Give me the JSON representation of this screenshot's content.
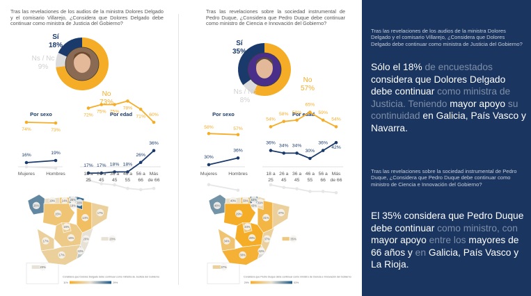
{
  "colors": {
    "si": "#1a3a6b",
    "no": "#f5ad27",
    "nsnc": "#dcdcdc",
    "sidebar_bg": "#1a3560",
    "map_low": "#f5ad27",
    "map_mid": "#e8e2d6",
    "map_high": "#1f5a86"
  },
  "chart_data": [
    {
      "id": "delgado-donut",
      "type": "pie",
      "title": "Tras las revelaciones de los audios de la ministra Dolores Delgado y el comisario Villarejo, ¿Considera que Dolores Delgado debe continuar como ministra de Justicia del Gobierno?",
      "slices": [
        {
          "label": "Sí",
          "value": 18,
          "text": "18%"
        },
        {
          "label": "No",
          "value": 73,
          "text": "73%"
        },
        {
          "label": "Ns / Nc",
          "value": 9,
          "text": "9%"
        }
      ]
    },
    {
      "id": "delgado-sexo",
      "type": "line",
      "title": "Por sexo",
      "categories": [
        "Mujeres",
        "Hombres"
      ],
      "series": [
        {
          "name": "No",
          "values": [
            74,
            73
          ]
        },
        {
          "name": "Sí",
          "values": [
            16,
            19
          ]
        },
        {
          "name": "Ns / Nc",
          "values": [
            10,
            8
          ]
        }
      ]
    },
    {
      "id": "delgado-edad",
      "type": "line",
      "title": "Por edad",
      "categories": [
        "18 a 25",
        "26 a 45",
        "36 a 45",
        "46 a 55",
        "56 a 66",
        "Más de 66"
      ],
      "series": [
        {
          "name": "No",
          "values": [
            72,
            75,
            75,
            78,
            71,
            60
          ]
        },
        {
          "name": "Sí",
          "values": [
            17,
            17,
            18,
            18,
            26,
            36
          ]
        },
        {
          "name": "Ns / Nc",
          "values": [
            11,
            8,
            7,
            4,
            3,
            4
          ]
        }
      ]
    },
    {
      "id": "duque-donut",
      "type": "pie",
      "title": "Tras las revelaciones sobre la sociedad instrumental de Pedro Duque, ¿Considera que Pedro Duque debe continuar como ministro de Ciencia e Innovación del Gobierno?",
      "slices": [
        {
          "label": "Sí",
          "value": 35,
          "text": "35%"
        },
        {
          "label": "No",
          "value": 57,
          "text": "57%"
        },
        {
          "label": "Ns / Nc",
          "value": 8,
          "text": "8%"
        }
      ]
    },
    {
      "id": "duque-sexo",
      "type": "line",
      "title": "Por sexo",
      "categories": [
        "Mujeres",
        "Hombres"
      ],
      "series": [
        {
          "name": "No",
          "values": [
            58,
            57
          ]
        },
        {
          "name": "Sí",
          "values": [
            30,
            36
          ]
        },
        {
          "name": "Ns / Nc",
          "values": [
            12,
            7
          ]
        }
      ]
    },
    {
      "id": "duque-edad",
      "type": "line",
      "title": "Por edad",
      "categories": [
        "18 a 25",
        "26 a 45",
        "36 a 45",
        "46 a 55",
        "56 a 66",
        "Más de 66"
      ],
      "series": [
        {
          "name": "No",
          "values": [
            54,
            58,
            59,
            65,
            59,
            54
          ]
        },
        {
          "name": "Sí",
          "values": [
            36,
            34,
            34,
            30,
            36,
            42
          ]
        },
        {
          "name": "Ns / Nc",
          "values": [
            10,
            8,
            7,
            5,
            5,
            4
          ]
        }
      ]
    },
    {
      "id": "delgado-map",
      "type": "heatmap",
      "title": "Considera que Dolores Delgado debe continuar como ministra de Justicia del Gobierno",
      "legend": {
        "min": "11%",
        "max": "29%"
      },
      "regions": [
        {
          "name": "Galicia",
          "value": 26
        },
        {
          "name": "Asturias",
          "value": 19
        },
        {
          "name": "Cantabria",
          "value": 14
        },
        {
          "name": "País Vasco",
          "value": 25
        },
        {
          "name": "Navarra",
          "value": 28
        },
        {
          "name": "La Rioja",
          "value": 19
        },
        {
          "name": "Castilla y León",
          "value": 15
        },
        {
          "name": "Aragón",
          "value": 14
        },
        {
          "name": "Cataluña",
          "value": 17
        },
        {
          "name": "Madrid",
          "value": 16
        },
        {
          "name": "Castilla-La Mancha",
          "value": 16
        },
        {
          "name": "Comunidad Valenciana",
          "value": 20
        },
        {
          "name": "Baleares",
          "value": 20
        },
        {
          "name": "Extremadura",
          "value": 17
        },
        {
          "name": "Andalucía",
          "value": 17
        },
        {
          "name": "Murcia",
          "value": 22
        },
        {
          "name": "Canarias",
          "value": 20
        }
      ]
    },
    {
      "id": "duque-map",
      "type": "heatmap",
      "title": "Considera que Pedro Duque debe continuar como ministro de Ciencia e Innovación del Gobierno",
      "legend": {
        "min": "29%",
        "max": "53%"
      },
      "regions": [
        {
          "name": "Galicia",
          "value": 48
        },
        {
          "name": "Asturias",
          "value": 40
        },
        {
          "name": "Cantabria",
          "value": 33
        },
        {
          "name": "País Vasco",
          "value": 53
        },
        {
          "name": "Navarra",
          "value": 39
        },
        {
          "name": "La Rioja",
          "value": 43
        },
        {
          "name": "Castilla y León",
          "value": 29
        },
        {
          "name": "Aragón",
          "value": 31
        },
        {
          "name": "Cataluña",
          "value": 37
        },
        {
          "name": "Madrid",
          "value": 34
        },
        {
          "name": "Castilla-La Mancha",
          "value": 28
        },
        {
          "name": "Comunidad Valenciana",
          "value": 37
        },
        {
          "name": "Baleares",
          "value": 35
        },
        {
          "name": "Extremadura",
          "value": 34
        },
        {
          "name": "Andalucía",
          "value": 30
        },
        {
          "name": "Murcia",
          "value": 42
        },
        {
          "name": "Canarias",
          "value": 37
        }
      ]
    }
  ],
  "sidebar": {
    "block1": {
      "question": "Tras las revelaciones de los audios de la ministra Dolores Delgado y el comisario Villarejo, ¿Considera que Dolores Delgado debe continuar como ministra de Justicia del Gobierno?",
      "segments": [
        {
          "text": "Sólo el 18%",
          "hl": true
        },
        {
          "text": " de encuestados ",
          "hl": false
        },
        {
          "text": "considera que Dolores Delgado debe continuar",
          "hl": true
        },
        {
          "text": " como ministra de Justicia. Teniendo ",
          "hl": false
        },
        {
          "text": "mayor apoyo",
          "hl": true
        },
        {
          "text": " su continuidad ",
          "hl": false
        },
        {
          "text": "en Galicia, País Vasco y Navarra.",
          "hl": true
        }
      ]
    },
    "block2": {
      "question": "Tras las revelaciones sobre la sociedad instrumental de Pedro Duque, ¿Considera que Pedro Duque debe continuar como ministro de Ciencia e Innovación del Gobierno?",
      "segments": [
        {
          "text": "El 35% considera que Pedro Duque debe continuar",
          "hl": true
        },
        {
          "text": " como ministro, con ",
          "hl": false
        },
        {
          "text": "mayor apoyo",
          "hl": true
        },
        {
          "text": " entre los ",
          "hl": false
        },
        {
          "text": "mayores de 66 años y",
          "hl": true
        },
        {
          "text": " en ",
          "hl": false
        },
        {
          "text": "Galicia, País Vasco y La Rioja.",
          "hl": true
        }
      ]
    }
  }
}
